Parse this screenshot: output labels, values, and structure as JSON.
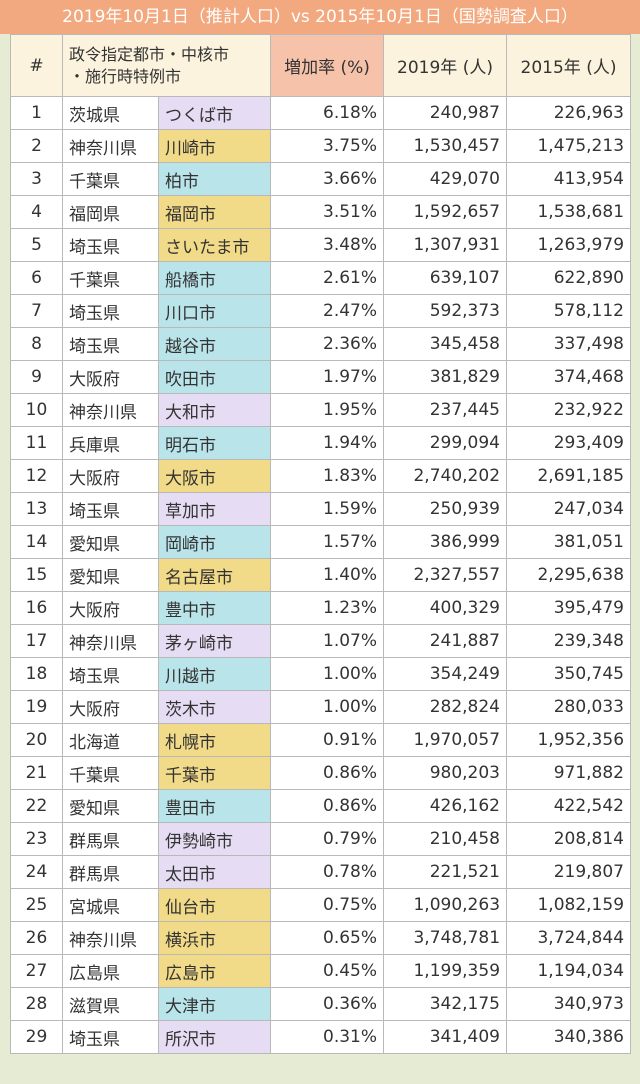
{
  "header": {
    "title": "2019年10月1日（推計人口）vs 2015年10月1日（国勢調査人口）"
  },
  "table": {
    "columns": [
      "#",
      [
        "政令指定都市・中核市",
        "・施行時特例市"
      ],
      "増加率 (%)",
      "2019年 (人)",
      "2015年 (人)"
    ],
    "rows": [
      [
        "1",
        "茨城県",
        "つくば市",
        "6.18%",
        "240,987",
        "226,963"
      ],
      [
        "2",
        "神奈川県",
        "川崎市",
        "3.75%",
        "1,530,457",
        "1,475,213"
      ],
      [
        "3",
        "千葉県",
        "柏市",
        "3.66%",
        "429,070",
        "413,954"
      ],
      [
        "4",
        "福岡県",
        "福岡市",
        "3.51%",
        "1,592,657",
        "1,538,681"
      ],
      [
        "5",
        "埼玉県",
        "さいたま市",
        "3.48%",
        "1,307,931",
        "1,263,979"
      ],
      [
        "6",
        "千葉県",
        "船橋市",
        "2.61%",
        "639,107",
        "622,890"
      ],
      [
        "7",
        "埼玉県",
        "川口市",
        "2.47%",
        "592,373",
        "578,112"
      ],
      [
        "8",
        "埼玉県",
        "越谷市",
        "2.36%",
        "345,458",
        "337,498"
      ],
      [
        "9",
        "大阪府",
        "吹田市",
        "1.97%",
        "381,829",
        "374,468"
      ],
      [
        "10",
        "神奈川県",
        "大和市",
        "1.95%",
        "237,445",
        "232,922"
      ],
      [
        "11",
        "兵庫県",
        "明石市",
        "1.94%",
        "299,094",
        "293,409"
      ],
      [
        "12",
        "大阪府",
        "大阪市",
        "1.83%",
        "2,740,202",
        "2,691,185"
      ],
      [
        "13",
        "埼玉県",
        "草加市",
        "1.59%",
        "250,939",
        "247,034"
      ],
      [
        "14",
        "愛知県",
        "岡崎市",
        "1.57%",
        "386,999",
        "381,051"
      ],
      [
        "15",
        "愛知県",
        "名古屋市",
        "1.40%",
        "2,327,557",
        "2,295,638"
      ],
      [
        "16",
        "大阪府",
        "豊中市",
        "1.23%",
        "400,329",
        "395,479"
      ],
      [
        "17",
        "神奈川県",
        "茅ヶ崎市",
        "1.07%",
        "241,887",
        "239,348"
      ],
      [
        "18",
        "埼玉県",
        "川越市",
        "1.00%",
        "354,249",
        "350,745"
      ],
      [
        "19",
        "大阪府",
        "茨木市",
        "1.00%",
        "282,824",
        "280,033"
      ],
      [
        "20",
        "北海道",
        "札幌市",
        "0.91%",
        "1,970,057",
        "1,952,356"
      ],
      [
        "21",
        "千葉県",
        "千葉市",
        "0.86%",
        "980,203",
        "971,882"
      ],
      [
        "22",
        "愛知県",
        "豊田市",
        "0.86%",
        "426,162",
        "422,542"
      ],
      [
        "23",
        "群馬県",
        "伊勢崎市",
        "0.79%",
        "210,458",
        "208,814"
      ],
      [
        "24",
        "群馬県",
        "太田市",
        "0.78%",
        "221,521",
        "219,807"
      ],
      [
        "25",
        "宮城県",
        "仙台市",
        "0.75%",
        "1,090,263",
        "1,082,159"
      ],
      [
        "26",
        "神奈川県",
        "横浜市",
        "0.65%",
        "3,748,781",
        "3,724,844"
      ],
      [
        "27",
        "広島県",
        "広島市",
        "0.45%",
        "1,199,359",
        "1,194,034"
      ],
      [
        "28",
        "滋賀県",
        "大津市",
        "0.36%",
        "342,175",
        "340,973"
      ],
      [
        "29",
        "埼玉県",
        "所沢市",
        "0.31%",
        "341,409",
        "340,386"
      ]
    ],
    "city_colors": [
      "#e6dcf3",
      "#f1da88",
      "#b9e5ea",
      "#f1da88",
      "#f1da88",
      "#b9e5ea",
      "#b9e5ea",
      "#b9e5ea",
      "#b9e5ea",
      "#e6dcf3",
      "#b9e5ea",
      "#f1da88",
      "#e6dcf3",
      "#b9e5ea",
      "#f1da88",
      "#b9e5ea",
      "#e6dcf3",
      "#b9e5ea",
      "#e6dcf3",
      "#f1da88",
      "#f1da88",
      "#b9e5ea",
      "#e6dcf3",
      "#e6dcf3",
      "#f1da88",
      "#f1da88",
      "#f1da88",
      "#b9e5ea",
      "#e6dcf3"
    ]
  }
}
